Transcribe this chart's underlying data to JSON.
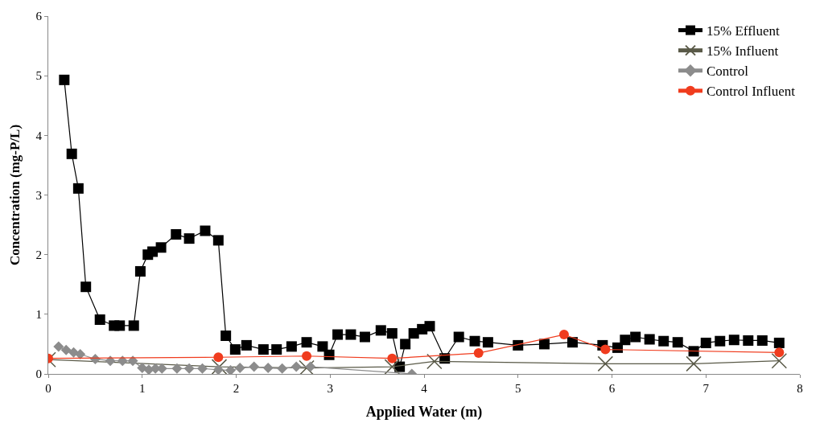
{
  "chart_data": {
    "type": "line",
    "xlabel": "Applied Water (m)",
    "ylabel": "Concentration (mg-P/L)",
    "xlim": [
      0,
      8
    ],
    "xticks": [
      0,
      1,
      2,
      3,
      4,
      5,
      6,
      7,
      8
    ],
    "ylim": [
      0,
      6
    ],
    "yticks": [
      0,
      1,
      2,
      3,
      4,
      5,
      6
    ],
    "grid": false,
    "legend": "top right",
    "line_style": "solid",
    "series": [
      {
        "name": "15% Effluent",
        "color": "#000000",
        "marker": "square",
        "x": [
          0.17,
          0.25,
          0.32,
          0.4,
          0.55,
          0.7,
          0.76,
          0.91,
          0.98,
          1.06,
          1.11,
          1.2,
          1.36,
          1.5,
          1.67,
          1.81,
          1.89,
          1.99,
          2.11,
          2.29,
          2.43,
          2.59,
          2.75,
          2.92,
          2.99,
          3.08,
          3.22,
          3.37,
          3.54,
          3.66,
          3.74,
          3.8,
          3.89,
          3.98,
          4.06,
          4.22,
          4.37,
          4.54,
          4.68,
          5.0,
          5.28,
          5.58,
          5.9,
          6.06,
          6.14,
          6.25,
          6.4,
          6.55,
          6.7,
          6.87,
          7.0,
          7.15,
          7.3,
          7.45,
          7.6,
          7.78
        ],
        "values": [
          4.93,
          3.69,
          3.11,
          1.46,
          0.91,
          0.81,
          0.81,
          0.81,
          1.72,
          2.0,
          2.05,
          2.12,
          2.34,
          2.27,
          2.4,
          2.24,
          0.64,
          0.41,
          0.48,
          0.41,
          0.41,
          0.46,
          0.53,
          0.46,
          0.32,
          0.66,
          0.66,
          0.62,
          0.73,
          0.68,
          0.12,
          0.5,
          0.68,
          0.75,
          0.8,
          0.26,
          0.62,
          0.55,
          0.53,
          0.48,
          0.5,
          0.53,
          0.48,
          0.44,
          0.57,
          0.62,
          0.58,
          0.55,
          0.53,
          0.38,
          0.52,
          0.55,
          0.57,
          0.56,
          0.56,
          0.52
        ]
      },
      {
        "name": "15% Influent",
        "color": "#5a5a48",
        "marker": "cross",
        "x": [
          0,
          1.82,
          2.75,
          3.66,
          4.11,
          5.93,
          6.87,
          7.78
        ],
        "values": [
          0.24,
          0.12,
          0.1,
          0.12,
          0.21,
          0.17,
          0.17,
          0.22
        ]
      },
      {
        "name": "Control",
        "color": "#8c8c8c",
        "marker": "diamond",
        "x": [
          0.11,
          0.19,
          0.27,
          0.34,
          0.5,
          0.66,
          0.79,
          0.9,
          1.0,
          1.07,
          1.14,
          1.21,
          1.37,
          1.5,
          1.64,
          1.81,
          1.94,
          2.04,
          2.19,
          2.34,
          2.49,
          2.64,
          2.79,
          3.87
        ],
        "values": [
          0.46,
          0.4,
          0.36,
          0.33,
          0.25,
          0.22,
          0.22,
          0.22,
          0.1,
          0.07,
          0.09,
          0.09,
          0.09,
          0.09,
          0.09,
          0.07,
          0.06,
          0.1,
          0.12,
          0.1,
          0.09,
          0.12,
          0.12,
          0.0
        ]
      },
      {
        "name": "Control Influent",
        "color": "#f03c1e",
        "marker": "circle",
        "x": [
          0,
          1.81,
          2.75,
          3.66,
          4.58,
          5.49,
          5.93,
          7.78
        ],
        "values": [
          0.26,
          0.28,
          0.3,
          0.26,
          0.35,
          0.66,
          0.41,
          0.36
        ]
      }
    ]
  }
}
